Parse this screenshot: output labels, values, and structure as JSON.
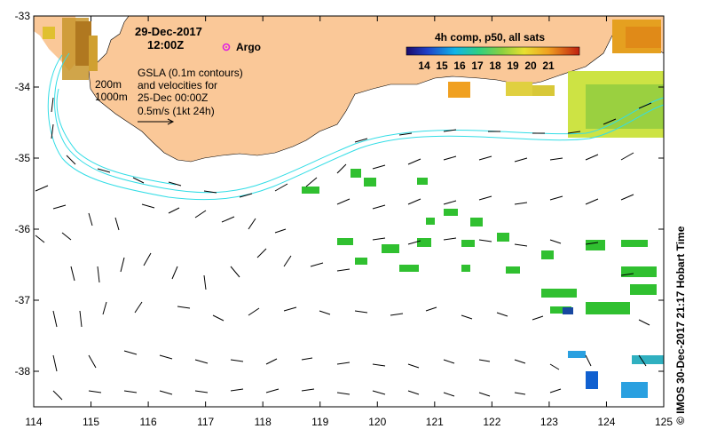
{
  "map": {
    "title_date": "29-Dec-2017",
    "title_time": "12:00Z",
    "argo_label": "Argo",
    "depth_200": "200m",
    "depth_1000": "1000m",
    "gsla_line1": "GSLA (0.1m contours)",
    "gsla_line2": "and velocities for",
    "gsla_line3": "25-Dec 00:00Z",
    "scale_label": "0.5m/s (1kt 24h)",
    "colorbar_title": "4h comp, p50, all sats",
    "colorbar_ticks": [
      "14",
      "15",
      "16",
      "17",
      "18",
      "19",
      "20",
      "21"
    ],
    "credit": "© IMOS 30-Dec-2017 21:17 Hobart Time",
    "x_ticks": [
      "114",
      "115",
      "116",
      "117",
      "118",
      "119",
      "120",
      "121",
      "122",
      "123",
      "124",
      "125"
    ],
    "y_ticks": [
      "-33",
      "-34",
      "-35",
      "-36",
      "-37",
      "-38"
    ],
    "colors": {
      "land": "#fac898",
      "contour": "#33dde6",
      "argo": "#e020e0",
      "sst_warm": "#e5a020",
      "sst_mid": "#c8e030",
      "sst_green": "#30c030",
      "sst_blue": "#1060d0"
    }
  }
}
